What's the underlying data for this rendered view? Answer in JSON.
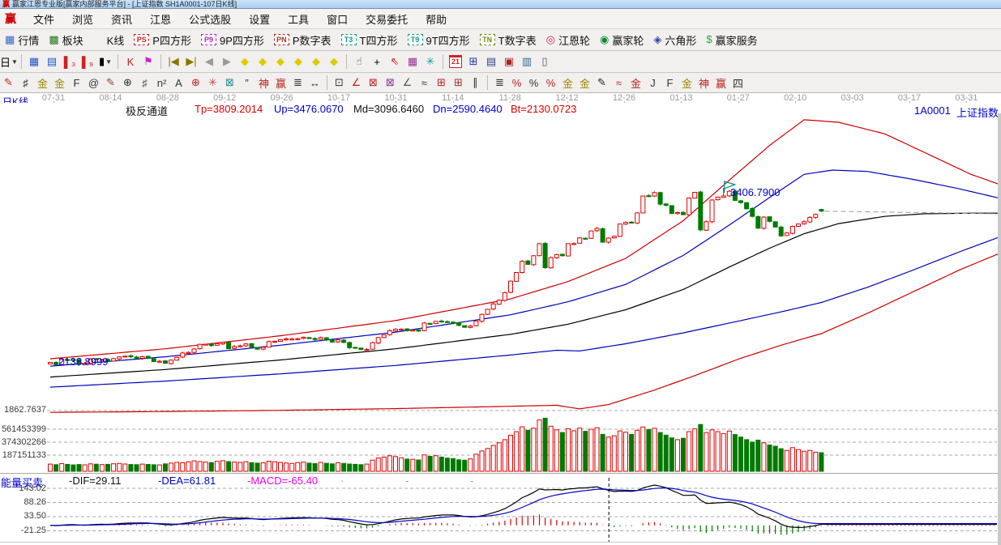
{
  "window": {
    "title": "赢家江恩专业版[赢家内部服务平台] - [上证指数  SH1A0001-107日K线]",
    "app_icon": "赢"
  },
  "menu": {
    "items": [
      "文件",
      "浏览",
      "资讯",
      "江恩",
      "公式选股",
      "设置",
      "工具",
      "窗口",
      "交易委托",
      "帮助"
    ]
  },
  "toolbar_main": {
    "items": [
      {
        "name": "quotes",
        "label": "行情",
        "icon": "table"
      },
      {
        "name": "sectors",
        "label": "板块",
        "icon": "blocks"
      },
      {
        "name": "kline",
        "label": "K线",
        "icon": "candles"
      },
      {
        "name": "p-square",
        "label": "P四方形",
        "badge": "PS",
        "color": "#cc2222"
      },
      {
        "name": "9p-square",
        "label": "9P四方形",
        "badge": "P9",
        "color": "#bb22bb"
      },
      {
        "name": "p-number-table",
        "label": "P数字表",
        "badge": "PN",
        "color": "#aa3322"
      },
      {
        "name": "t-square",
        "label": "T四方形",
        "badge": "T3",
        "color": "#119988"
      },
      {
        "name": "9t-square",
        "label": "9T四方形",
        "badge": "T9",
        "color": "#119988"
      },
      {
        "name": "t-number-table",
        "label": "T数字表",
        "badge": "TN",
        "color": "#778811"
      },
      {
        "name": "gann-wheel",
        "label": "江恩轮",
        "icon": "wheel"
      },
      {
        "name": "winner-wheel",
        "label": "赢家轮",
        "icon": "wheel2"
      },
      {
        "name": "hexagon",
        "label": "六角形",
        "icon": "hexagon"
      },
      {
        "name": "winner-service",
        "label": "赢家服务",
        "icon": "dollar"
      }
    ]
  },
  "toolbar_nav": {
    "items": [
      {
        "name": "period-day",
        "g": "日",
        "c": "#000000",
        "dd": 1
      },
      {
        "sep": 1
      },
      {
        "name": "main-view-icon",
        "g": "▦",
        "c": "#2255cc"
      },
      {
        "name": "info-view-icon",
        "g": "▤",
        "c": "#2255cc"
      },
      {
        "name": "bars-3-icon",
        "g": "▌₃",
        "c": "#cc2222"
      },
      {
        "name": "bars-9-icon",
        "g": "▌₉",
        "c": "#cc2222"
      },
      {
        "name": "candle-type",
        "g": "▮",
        "c": "#000000",
        "dd": 1
      },
      {
        "sep": 1
      },
      {
        "name": "k-pattern-icon",
        "g": "K",
        "c": "#cc2222"
      },
      {
        "name": "flag-mark-icon",
        "g": "⚑",
        "c": "#cc22cc"
      },
      {
        "sep": 1
      },
      {
        "name": "first-page",
        "g": "|◀",
        "c": "#887700"
      },
      {
        "name": "last-page",
        "g": "▶|",
        "c": "#887700"
      },
      {
        "name": "prev-page",
        "g": "◀",
        "c": "#999999"
      },
      {
        "name": "next-page",
        "g": "▶",
        "c": "#999999"
      },
      {
        "name": "pan-left",
        "g": "◆",
        "c": "#ddcb00"
      },
      {
        "name": "pan-right",
        "g": "◆",
        "c": "#ddcb00"
      },
      {
        "name": "zoom-horizontal",
        "g": "◆",
        "c": "#ddcb00"
      },
      {
        "name": "zoom-vertical",
        "g": "◆",
        "c": "#ddcb00"
      },
      {
        "name": "zoom-in",
        "g": "◆",
        "c": "#ddcb00"
      },
      {
        "name": "zoom-out",
        "g": "◆",
        "c": "#ddcb00"
      },
      {
        "sep": 1
      },
      {
        "name": "hand-tool",
        "g": "☝",
        "c": "#664422"
      },
      {
        "name": "crosshair-tool",
        "g": "+",
        "c": "#000000"
      },
      {
        "name": "pointer-angle-tool",
        "g": "⇖",
        "c": "#cc2222"
      },
      {
        "name": "cube-tool",
        "g": "▦",
        "c": "#993399"
      },
      {
        "name": "star-tool",
        "g": "✳",
        "c": "#119999"
      },
      {
        "sep": 1
      },
      {
        "name": "calendar-21",
        "cal": "21"
      },
      {
        "name": "calculator",
        "g": "⊞",
        "c": "#2233aa"
      },
      {
        "name": "notebook",
        "g": "▤",
        "c": "#334488"
      },
      {
        "name": "save",
        "g": "▣",
        "c": "#aa2222"
      },
      {
        "name": "export-tool",
        "g": "▥",
        "c": "#336699"
      },
      {
        "name": "computer",
        "g": "▯",
        "c": "#555566"
      }
    ]
  },
  "toolbar_draw": {
    "items": [
      {
        "name": "draw-pen",
        "g": "✎",
        "c": "#bb2222"
      },
      {
        "name": "grid-tool",
        "g": "♯",
        "c": "#333333"
      },
      {
        "name": "gold-grid",
        "g": "金",
        "c": "#998800"
      },
      {
        "name": "gold-grid2",
        "g": "金",
        "c": "#998800"
      },
      {
        "name": "f-tool",
        "g": "F",
        "c": "#333333"
      },
      {
        "name": "spiral-tool",
        "g": "@",
        "c": "#333333"
      },
      {
        "name": "brush-tool",
        "g": "✎",
        "c": "#884422"
      },
      {
        "name": "circle-grid",
        "g": "⊕",
        "c": "#333333"
      },
      {
        "name": "dense-grid",
        "g": "♯",
        "c": "#555555"
      },
      {
        "name": "n-square",
        "g": "n²",
        "c": "#333333"
      },
      {
        "name": "mirror-a",
        "g": "A",
        "c": "#333333"
      },
      {
        "name": "compass-tool",
        "g": "⊕",
        "c": "#bb2222"
      },
      {
        "name": "star-rays",
        "g": "✳",
        "c": "#bb4444"
      },
      {
        "name": "grid-x",
        "g": "⊠",
        "c": "#228888"
      },
      {
        "name": "quote-marks",
        "g": "”",
        "c": "#333333"
      },
      {
        "name": "shen-grid",
        "g": "神",
        "c": "#bb2222"
      },
      {
        "name": "win-grid",
        "g": "赢",
        "c": "#bb2222"
      },
      {
        "name": "number-grid",
        "g": "≣",
        "c": "#333333"
      },
      {
        "name": "h-range",
        "g": "↔",
        "c": "#333333"
      },
      {
        "sep": 1
      },
      {
        "name": "box-select",
        "g": "⊡",
        "c": "#333333"
      },
      {
        "name": "fan-lines",
        "g": "∠",
        "c": "#bb2222"
      },
      {
        "name": "fan-box",
        "g": "⊠",
        "c": "#bb2222"
      },
      {
        "name": "fan-box2",
        "g": "⊠",
        "c": "#883399"
      },
      {
        "name": "angle-lines",
        "g": "∠",
        "c": "#555555"
      },
      {
        "name": "wave-tool",
        "g": "≈",
        "c": "#333333"
      },
      {
        "name": "red-grid",
        "g": "⊞",
        "c": "#bb2222"
      },
      {
        "name": "red-grid2",
        "g": "⊞",
        "c": "#993333"
      },
      {
        "name": "parallel-lines",
        "g": "∥",
        "c": "#333333"
      },
      {
        "sep": 1
      },
      {
        "name": "list-grid",
        "g": "≣",
        "c": "#333333"
      },
      {
        "name": "percent-strike",
        "g": "%",
        "c": "#bb2222"
      },
      {
        "name": "percent",
        "g": "%",
        "c": "#333333"
      },
      {
        "name": "percent-lines",
        "g": "%",
        "c": "#bb2222"
      },
      {
        "name": "gold-circle",
        "g": "金",
        "c": "#998800"
      },
      {
        "name": "gold-lines",
        "g": "金",
        "c": "#998800"
      },
      {
        "name": "ink-pen",
        "g": "✎",
        "c": "#222222"
      },
      {
        "name": "wave-red",
        "g": "≈",
        "c": "#bb2222"
      },
      {
        "name": "gold-red",
        "g": "金",
        "c": "#bb2222"
      },
      {
        "name": "j-angle",
        "g": "J",
        "c": "#333333"
      },
      {
        "name": "f-angle",
        "g": "F",
        "c": "#333333"
      },
      {
        "name": "gold-angle",
        "g": "金",
        "c": "#998800"
      },
      {
        "name": "shen-angle",
        "g": "神",
        "c": "#bb2222"
      },
      {
        "name": "win-angle",
        "g": "赢",
        "c": "#bb2222"
      },
      {
        "name": "si-angle",
        "g": "四",
        "c": "#333333"
      }
    ]
  },
  "left_labels": {
    "period": "日K线",
    "indicator_bottom": "能量买卖"
  },
  "chart_header": {
    "indicator": "极反通道",
    "tp": "Tp=3809.2014",
    "up": "Up=3476.0670",
    "md": "Md=3096.6460",
    "dn": "Dn=2590.4640",
    "bt": "Bt=2130.0723",
    "right_code": "1A0001",
    "right_name": "上证指数"
  },
  "date_axis": {
    "labels": [
      "07-31",
      "08-14",
      "08-28",
      "09-12",
      "09-26",
      "10-17",
      "10-31",
      "11-14",
      "11-28",
      "12-12",
      "12-26",
      "01-13",
      "01-27",
      "02-10",
      "03-03",
      "03-17",
      "03-31"
    ]
  },
  "axis": {
    "price_label": "1862.7637",
    "volume_labels": [
      "561453399",
      "374302266",
      "187151133"
    ],
    "macd_labels": [
      "143.02",
      "88.26",
      "33.50",
      "-21.25"
    ]
  },
  "macd_header": {
    "name": "能量买卖",
    "dif": "-DIF=29.11",
    "dea": "-DEA=61.81",
    "macd": "-MACD=-65.40",
    "placeholders": [
      "·",
      "-",
      "-"
    ]
  },
  "annotations": {
    "peak_label": "3406.7900",
    "start_label": "2138.8999"
  },
  "chart_data": {
    "type": "candlestick+volume+macd",
    "symbol": "1A0001",
    "symbol_name": "上证指数",
    "period": "日K线",
    "channel_name": "极反通道",
    "channel_values": {
      "Tp": 3809.2014,
      "Up": 3476.067,
      "Md": 3096.646,
      "Dn": 2590.464,
      "Bt": 2130.0723
    },
    "peak": {
      "day": 117,
      "high": 3406.79
    },
    "crosshair_day": 97,
    "macd_last": {
      "dif": 29.11,
      "dea": 61.81,
      "macd": -65.4
    },
    "closes": [
      2201,
      2185,
      2223,
      2220,
      2217,
      2188,
      2194,
      2225,
      2223,
      2222,
      2209,
      2227,
      2239,
      2245,
      2240,
      2230,
      2241,
      2229,
      2207,
      2209,
      2195,
      2217,
      2236,
      2266,
      2270,
      2294,
      2326,
      2327,
      2317,
      2331,
      2339,
      2296,
      2311,
      2316,
      2329,
      2306,
      2292,
      2305,
      2345,
      2347,
      2358,
      2364,
      2363,
      2365,
      2375,
      2366,
      2359,
      2373,
      2356,
      2341,
      2357,
      2339,
      2303,
      2302,
      2290,
      2290,
      2337,
      2373,
      2391,
      2420,
      2430,
      2431,
      2420,
      2425,
      2418,
      2473,
      2470,
      2485,
      2485,
      2479,
      2474,
      2457,
      2443,
      2452,
      2487,
      2533,
      2568,
      2605,
      2630,
      2683,
      2763,
      2822,
      2900,
      2878,
      2938,
      3021,
      2856,
      2925,
      2946,
      2938,
      3021,
      3022,
      3061,
      3058,
      3109,
      3127,
      3032,
      3060,
      3073,
      3157,
      3168,
      3166,
      3234,
      3351,
      3352,
      3374,
      3294,
      3286,
      3229,
      3236,
      3222,
      3336,
      3376,
      3116,
      3173,
      3323,
      3343,
      3351,
      3383,
      3320,
      3305,
      3262,
      3210,
      3128,
      3205,
      3175,
      3136,
      3075,
      3095,
      3141,
      3157,
      3173,
      3203,
      3223,
      3246
    ],
    "open_overrides": {
      "0": 2190,
      "134": 3258
    },
    "volumes_m": [
      95,
      88,
      102,
      92,
      85,
      90,
      86,
      98,
      94,
      89,
      92,
      99,
      104,
      96,
      90,
      88,
      95,
      91,
      87,
      84,
      98,
      108,
      118,
      112,
      125,
      138,
      128,
      122,
      116,
      132,
      140,
      128,
      122,
      118,
      126,
      114,
      108,
      112,
      134,
      126,
      118,
      110,
      104,
      116,
      122,
      108,
      102,
      118,
      106,
      98,
      112,
      104,
      96,
      92,
      88,
      95,
      148,
      176,
      188,
      205,
      195,
      178,
      162,
      158,
      150,
      216,
      198,
      206,
      188,
      174,
      168,
      152,
      146,
      164,
      226,
      268,
      302,
      342,
      376,
      418,
      476,
      524,
      588,
      542,
      570,
      678,
      702,
      596,
      548,
      512,
      562,
      536,
      570,
      528,
      556,
      576,
      488,
      452,
      470,
      534,
      516,
      488,
      542,
      586,
      552,
      568,
      512,
      478,
      442,
      418,
      436,
      524,
      560,
      618,
      512,
      548,
      524,
      498,
      532,
      486,
      452,
      418,
      386,
      412,
      376,
      348,
      332,
      298,
      276,
      312,
      288,
      264,
      276,
      252,
      246
    ],
    "lines": {
      "Tp": [
        [
          0,
          2226
        ],
        [
          20,
          2295
        ],
        [
          40,
          2385
        ],
        [
          60,
          2490
        ],
        [
          80,
          2640
        ],
        [
          90,
          2760
        ],
        [
          100,
          2920
        ],
        [
          110,
          3180
        ],
        [
          118,
          3460
        ],
        [
          125,
          3700
        ],
        [
          131,
          3877
        ],
        [
          137,
          3860
        ],
        [
          145,
          3780
        ],
        [
          152,
          3650
        ],
        [
          160,
          3500
        ],
        [
          165,
          3430
        ]
      ],
      "Up": [
        [
          0,
          2175
        ],
        [
          20,
          2240
        ],
        [
          40,
          2320
        ],
        [
          60,
          2410
        ],
        [
          80,
          2530
        ],
        [
          90,
          2620
        ],
        [
          100,
          2740
        ],
        [
          110,
          2940
        ],
        [
          118,
          3150
        ],
        [
          125,
          3340
        ],
        [
          131,
          3500
        ],
        [
          136,
          3530
        ],
        [
          142,
          3520
        ],
        [
          150,
          3465
        ],
        [
          158,
          3400
        ],
        [
          165,
          3335
        ]
      ],
      "Md": [
        [
          0,
          2100
        ],
        [
          20,
          2152
        ],
        [
          40,
          2218
        ],
        [
          60,
          2295
        ],
        [
          80,
          2395
        ],
        [
          90,
          2465
        ],
        [
          100,
          2565
        ],
        [
          110,
          2705
        ],
        [
          118,
          2860
        ],
        [
          125,
          2990
        ],
        [
          131,
          3090
        ],
        [
          137,
          3160
        ],
        [
          145,
          3210
        ],
        [
          152,
          3228
        ],
        [
          160,
          3232
        ],
        [
          165,
          3232
        ]
      ],
      "Dn": [
        [
          0,
          2030
        ],
        [
          20,
          2072
        ],
        [
          40,
          2122
        ],
        [
          60,
          2180
        ],
        [
          80,
          2252
        ],
        [
          88,
          2285
        ],
        [
          92,
          2280
        ],
        [
          100,
          2330
        ],
        [
          110,
          2405
        ],
        [
          120,
          2490
        ],
        [
          127,
          2550
        ],
        [
          134,
          2615
        ],
        [
          142,
          2720
        ],
        [
          150,
          2840
        ],
        [
          158,
          2965
        ],
        [
          165,
          3068
        ]
      ],
      "Bt": [
        [
          0,
          1856
        ],
        [
          20,
          1862
        ],
        [
          40,
          1870
        ],
        [
          60,
          1882
        ],
        [
          80,
          1898
        ],
        [
          88,
          1905
        ],
        [
          92,
          1880
        ],
        [
          97,
          1910
        ],
        [
          105,
          2010
        ],
        [
          112,
          2110
        ],
        [
          120,
          2230
        ],
        [
          127,
          2320
        ],
        [
          134,
          2400
        ],
        [
          142,
          2540
        ],
        [
          150,
          2690
        ],
        [
          158,
          2840
        ],
        [
          165,
          2955
        ]
      ]
    },
    "colors": {
      "up": "#e00000",
      "down": "#017a01",
      "line_red": "#cc0000",
      "line_blue": "#0000bb",
      "line_black": "#000000",
      "dif": "#000000",
      "dea": "#0000cc",
      "grid": "#aaaaaa"
    }
  }
}
